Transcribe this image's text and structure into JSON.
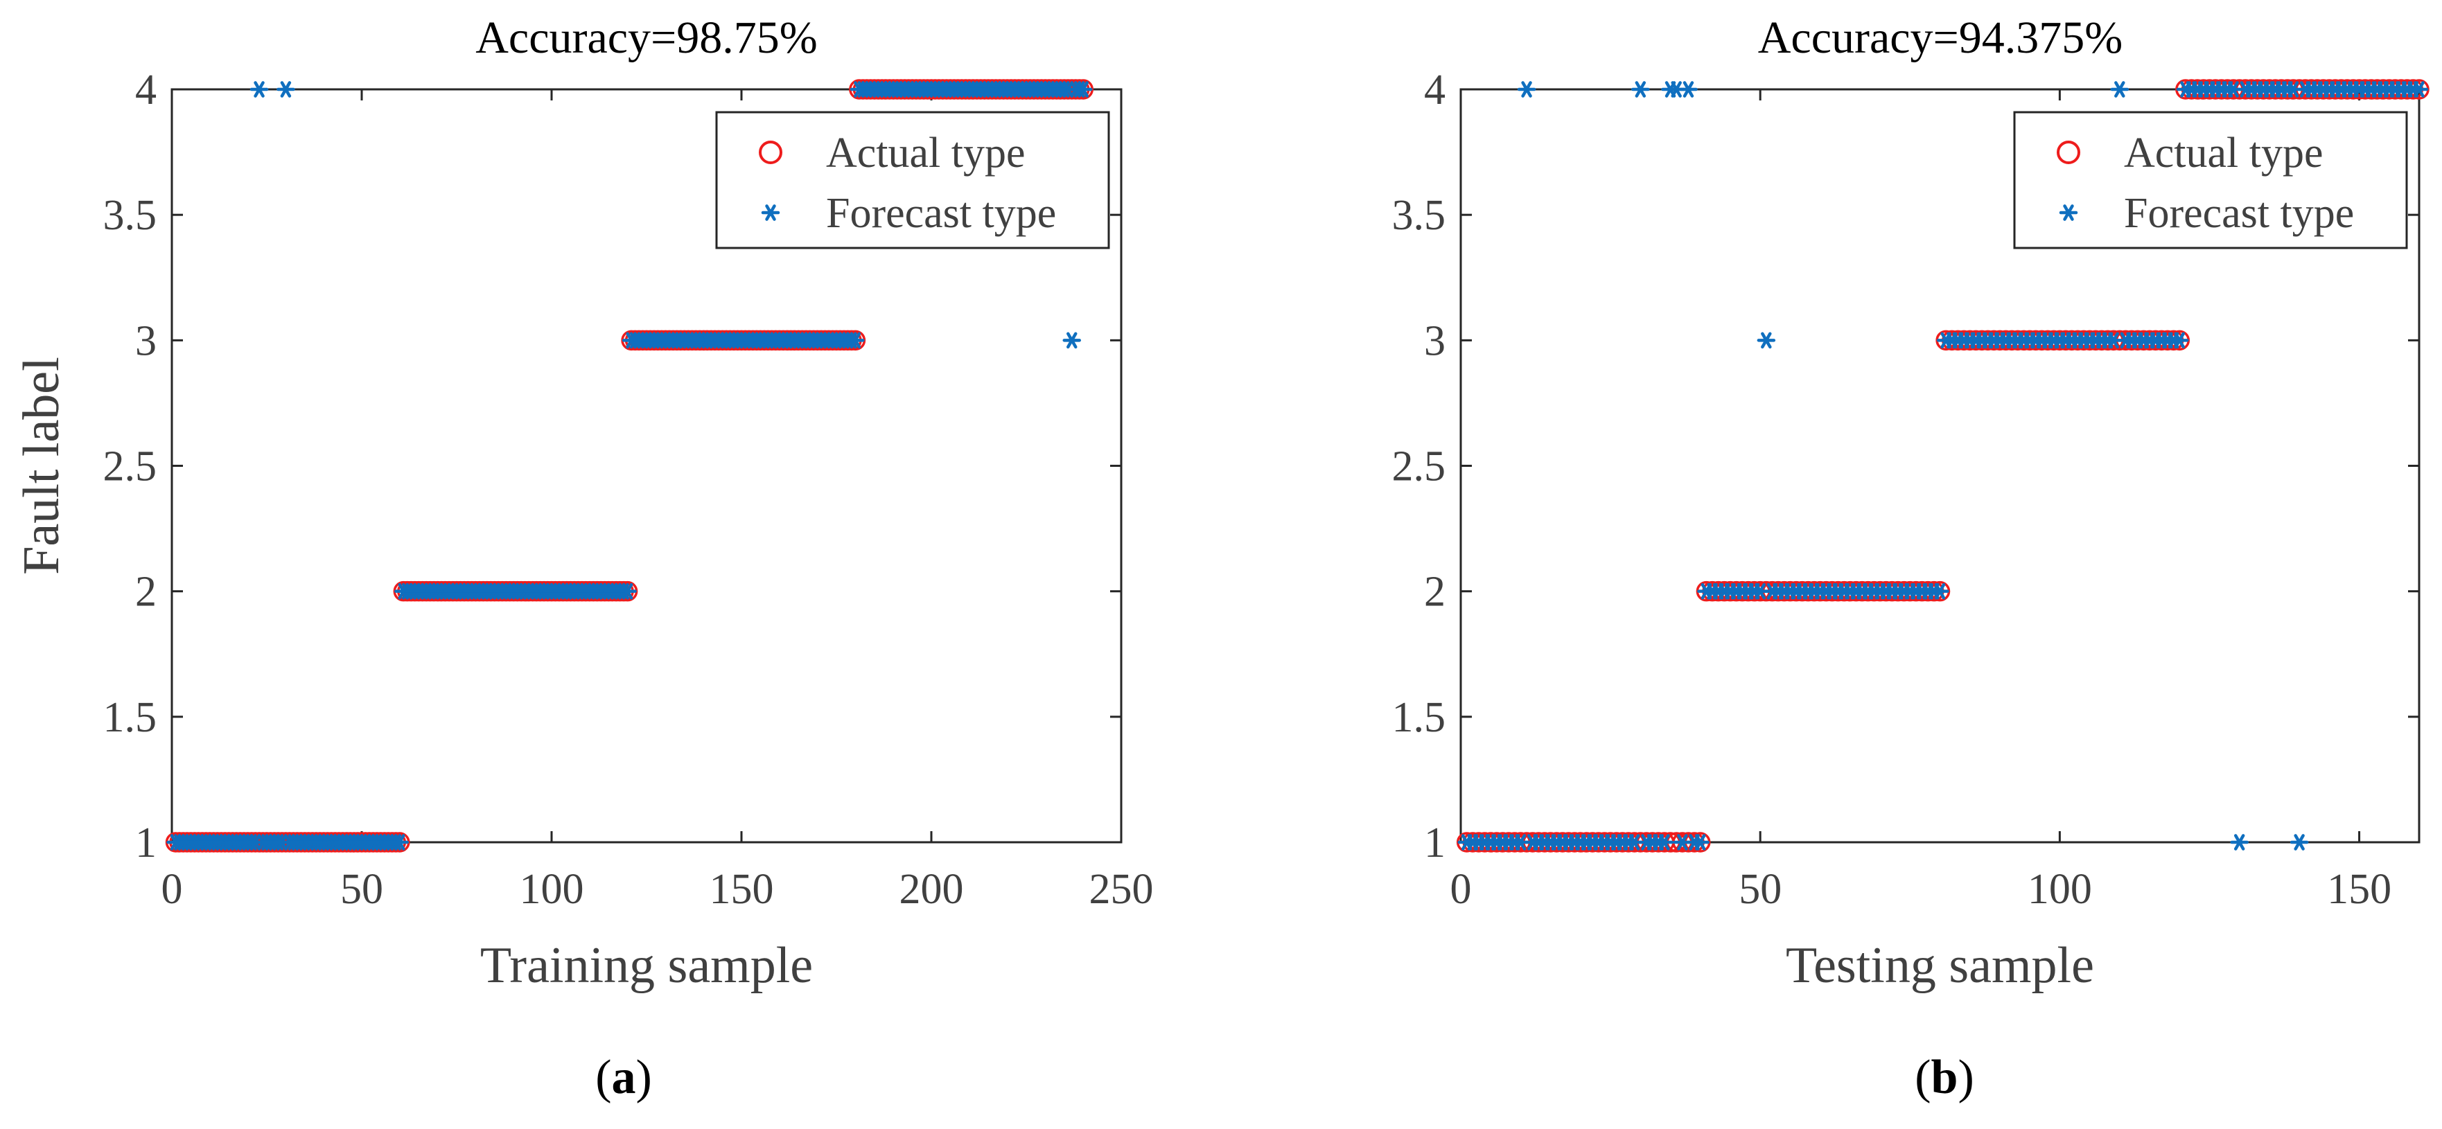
{
  "colors": {
    "actual": "#ee1c1c",
    "forecast": "#0f6fbf",
    "axis": "#262626",
    "text": "#404040"
  },
  "chart_data": [
    {
      "id": "a",
      "type": "scatter",
      "title": "Accuracy=98.75%",
      "xlabel": "Training sample",
      "ylabel": "Fault label",
      "xlim": [
        0,
        250
      ],
      "ylim": [
        1,
        4
      ],
      "xticks": [
        0,
        50,
        100,
        150,
        200,
        250
      ],
      "yticks": [
        1,
        1.5,
        2,
        2.5,
        3,
        3.5,
        4
      ],
      "xtick_labels": [
        "0",
        "50",
        "100",
        "150",
        "200",
        "250"
      ],
      "ytick_labels": [
        "1",
        "1.5",
        "2",
        "2.5",
        "3",
        "3.5",
        "4"
      ],
      "grid": false,
      "legend_position": "top-right",
      "caption_letter": "a",
      "series": [
        {
          "name": "Actual type",
          "marker": "circle",
          "ranges": [
            {
              "x_start": 1,
              "x_end": 60,
              "y": 1
            },
            {
              "x_start": 61,
              "x_end": 120,
              "y": 2
            },
            {
              "x_start": 121,
              "x_end": 180,
              "y": 3
            },
            {
              "x_start": 181,
              "x_end": 240,
              "y": 4
            }
          ]
        },
        {
          "name": "Forecast type",
          "marker": "asterisk",
          "ranges": [
            {
              "x_start": 1,
              "x_end": 60,
              "y": 1,
              "except": [
                23,
                30
              ]
            },
            {
              "x_start": 61,
              "x_end": 120,
              "y": 2
            },
            {
              "x_start": 121,
              "x_end": 180,
              "y": 3
            },
            {
              "x_start": 181,
              "x_end": 240,
              "y": 4,
              "except": [
                237
              ]
            }
          ],
          "points": [
            {
              "x": 23,
              "y": 4
            },
            {
              "x": 30,
              "y": 4
            },
            {
              "x": 237,
              "y": 3
            }
          ]
        }
      ]
    },
    {
      "id": "b",
      "type": "scatter",
      "title": "Accuracy=94.375%",
      "xlabel": "Testing sample",
      "ylabel": "Fault label",
      "xlim": [
        0,
        160
      ],
      "ylim": [
        1,
        4
      ],
      "xticks": [
        0,
        50,
        100,
        150
      ],
      "yticks": [
        1,
        1.5,
        2,
        2.5,
        3,
        3.5,
        4
      ],
      "xtick_labels": [
        "0",
        "50",
        "100",
        "150"
      ],
      "ytick_labels": [
        "1",
        "1.5",
        "2",
        "2.5",
        "3",
        "3.5",
        "4"
      ],
      "grid": false,
      "legend_position": "top-right",
      "caption_letter": "b",
      "series": [
        {
          "name": "Actual type",
          "marker": "circle",
          "ranges": [
            {
              "x_start": 1,
              "x_end": 40,
              "y": 1
            },
            {
              "x_start": 41,
              "x_end": 80,
              "y": 2
            },
            {
              "x_start": 81,
              "x_end": 120,
              "y": 3
            },
            {
              "x_start": 121,
              "x_end": 160,
              "y": 4
            }
          ]
        },
        {
          "name": "Forecast type",
          "marker": "asterisk",
          "ranges": [
            {
              "x_start": 1,
              "x_end": 40,
              "y": 1,
              "except": [
                11,
                30,
                35,
                36,
                38
              ]
            },
            {
              "x_start": 41,
              "x_end": 80,
              "y": 2,
              "except": [
                51
              ]
            },
            {
              "x_start": 81,
              "x_end": 120,
              "y": 3,
              "except": [
                110
              ]
            },
            {
              "x_start": 121,
              "x_end": 160,
              "y": 4,
              "except": [
                130,
                140
              ]
            }
          ],
          "points": [
            {
              "x": 11,
              "y": 4
            },
            {
              "x": 30,
              "y": 4
            },
            {
              "x": 35,
              "y": 4
            },
            {
              "x": 36,
              "y": 4
            },
            {
              "x": 38,
              "y": 4
            },
            {
              "x": 51,
              "y": 3
            },
            {
              "x": 110,
              "y": 4
            },
            {
              "x": 130,
              "y": 1
            },
            {
              "x": 140,
              "y": 1
            }
          ]
        }
      ]
    }
  ]
}
